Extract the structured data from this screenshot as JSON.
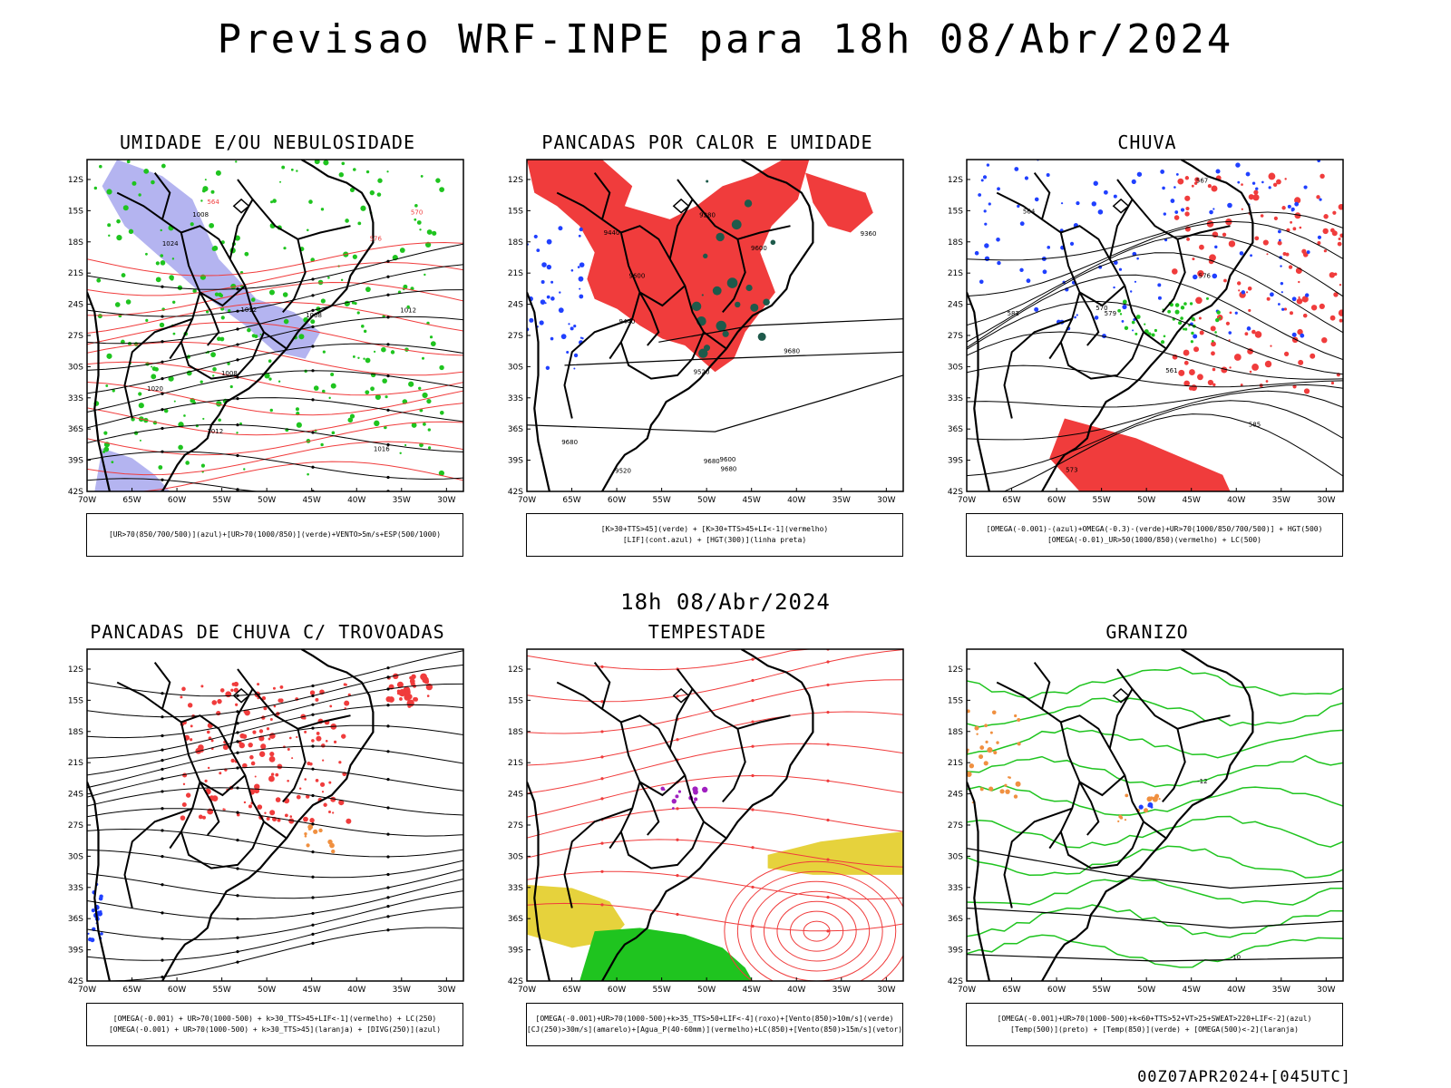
{
  "header": {
    "title": "Previsao WRF-INPE  para 18h 08/Abr/2024"
  },
  "mid_date": "18h 08/Abr/2024",
  "footer": "00Z07APR2024+[045UTC]",
  "axes": {
    "lat_ticks": [
      "12S",
      "15S",
      "18S",
      "21S",
      "24S",
      "27S",
      "30S",
      "33S",
      "36S",
      "39S",
      "42S"
    ],
    "lon_ticks": [
      "70W",
      "65W",
      "60W",
      "55W",
      "50W",
      "45W",
      "40W",
      "35W",
      "30W"
    ]
  },
  "colors": {
    "green": "#1fc41f",
    "red": "#f03c3c",
    "blue": "#2040ff",
    "lavender": "#b4b4f0",
    "yellow": "#e6d23c",
    "darkgreen": "#1e5a4b",
    "orange": "#f09040",
    "purple": "#a020c0"
  },
  "panels": [
    {
      "title": "UMIDADE E/OU NEBULOSIDADE",
      "legend": [
        "[UR>70(850/700/500)](azul)+[UR>70(1000/850)](verde)+VENTO>5m/s+ESP(500/1000)"
      ],
      "labels": [
        "1008",
        "1012",
        "1012",
        "1016",
        "1020",
        "1024",
        "1008",
        "1012",
        "1008",
        "570",
        "576",
        "564"
      ]
    },
    {
      "title": "PANCADAS POR CALOR E UMIDADE",
      "legend": [
        "[K>30+TTS>45](verde) + [K>30+TTS>45+LI<-1](vermelho)",
        "[LIF](cont.azul) + [HGT(300)](linha preta)"
      ],
      "labels": [
        "9680",
        "9680",
        "9680",
        "9600",
        "9680",
        "9600",
        "9600",
        "9520",
        "9520",
        "9440",
        "9440",
        "9360",
        "9280"
      ]
    },
    {
      "title": "CHUVA",
      "legend": [
        "[OMEGA(-0.001)-(azul)+OMEGA(-0.3)-(verde)+UR>70(1000/850/700/500)] + HGT(500)",
        "[OMEGA(-0.01)_UR>50(1000/850)(vermelho) + LC(500)"
      ],
      "labels": [
        "585",
        "582",
        "576",
        "573",
        "579",
        "570",
        "567",
        "564",
        "561"
      ]
    },
    {
      "title": "PANCADAS DE CHUVA C/ TROVOADAS",
      "legend": [
        "[OMEGA(-0.001) + UR>70(1000-500) + k>30_TTS>45+LIF<-1](vermelho) + LC(250)",
        "[OMEGA(-0.001) + UR>70(1000-500) + k>30_TTS>45](laranja) + [DIVG(250)](azul)"
      ],
      "labels": []
    },
    {
      "title": "TEMPESTADE",
      "legend": [
        "[OMEGA(-0.001)+UR>70(1000-500)+k>35_TTS>50+LIF<-4](roxo)+[Vento(850)>10m/s](verde)",
        "[CJ(250)>30m/s](amarelo)+[Agua_P(40-60mm)](vermelho)+LC(850)+[Vento(850)>15m/s](vetor)"
      ],
      "labels": []
    },
    {
      "title": "GRANIZO",
      "legend": [
        "[OMEGA(-0.001)+UR>70(1000-500)+k<60+TTS>52+VT>25+SWEAT>220+LIF<-2](azul)",
        "[Temp(500)](preto) + [Temp(850)](verde) + [OMEGA(500)<-2](laranja)"
      ],
      "labels": [
        "-12",
        "-10"
      ]
    }
  ]
}
